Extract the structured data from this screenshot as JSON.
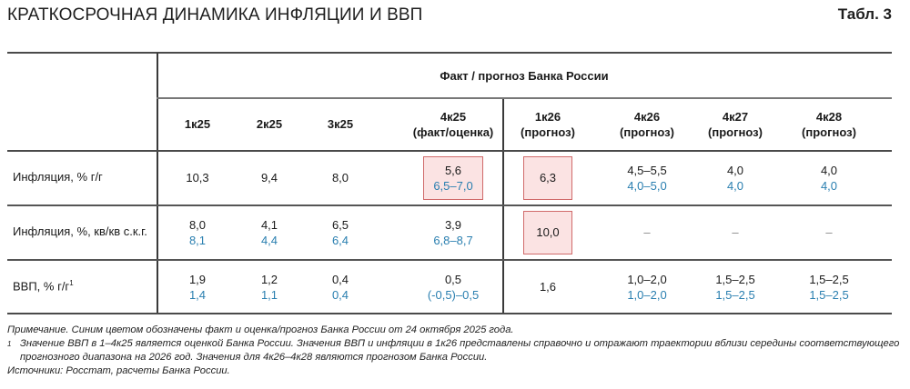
{
  "title": "КРАТКОСРОЧНАЯ ДИНАМИКА ИНФЛЯЦИИ И ВВП",
  "table_number": "Табл. 3",
  "group_header": "Факт / прогноз Банка России",
  "columns": [
    {
      "label": "1к25",
      "sub": ""
    },
    {
      "label": "2к25",
      "sub": ""
    },
    {
      "label": "3к25",
      "sub": ""
    },
    {
      "label": "4к25",
      "sub": "(факт/оценка)"
    },
    {
      "label": "1к26",
      "sub": "(прогноз)"
    },
    {
      "label": "4к26",
      "sub": "(прогноз)"
    },
    {
      "label": "4к27",
      "sub": "(прогноз)"
    },
    {
      "label": "4к28",
      "sub": "(прогноз)"
    }
  ],
  "rows": [
    {
      "label": "Инфляция, % г/г",
      "superscript": "",
      "cells": [
        {
          "main": "10,3",
          "blue": ""
        },
        {
          "main": "9,4",
          "blue": ""
        },
        {
          "main": "8,0",
          "blue": ""
        },
        {
          "main": "5,6",
          "blue": "6,5–7,0",
          "highlight": true
        },
        {
          "main": "6,3",
          "blue": "",
          "highlight": true
        },
        {
          "main": "4,5–5,5",
          "blue": "4,0–5,0"
        },
        {
          "main": "4,0",
          "blue": "4,0"
        },
        {
          "main": "4,0",
          "blue": "4,0"
        }
      ]
    },
    {
      "label": "Инфляция, %, кв/кв с.к.г.",
      "superscript": "",
      "cells": [
        {
          "main": "8,0",
          "blue": "8,1"
        },
        {
          "main": "4,1",
          "blue": "4,4"
        },
        {
          "main": "6,5",
          "blue": "6,4"
        },
        {
          "main": "3,9",
          "blue": "6,8–8,7"
        },
        {
          "main": "10,0",
          "blue": "",
          "highlight": true
        },
        {
          "main": "–",
          "blue": ""
        },
        {
          "main": "–",
          "blue": ""
        },
        {
          "main": "–",
          "blue": ""
        }
      ]
    },
    {
      "label": "ВВП, % г/г",
      "superscript": "1",
      "cells": [
        {
          "main": "1,9",
          "blue": "1,4"
        },
        {
          "main": "1,2",
          "blue": "1,1"
        },
        {
          "main": "0,4",
          "blue": "0,4"
        },
        {
          "main": "0,5",
          "blue": "(-0,5)–0,5"
        },
        {
          "main": "1,6",
          "blue": ""
        },
        {
          "main": "1,0–2,0",
          "blue": "1,0–2,0"
        },
        {
          "main": "1,5–2,5",
          "blue": "1,5–2,5"
        },
        {
          "main": "1,5–2,5",
          "blue": "1,5–2,5"
        }
      ]
    }
  ],
  "notes": {
    "note": "Примечание. Синим цветом обозначены факт и оценка/прогноз Банка России от 24 октября 2025 года.",
    "footnote_mark": "1",
    "footnote": "Значение ВВП в 1–4к25 является оценкой Банка России. Значения ВВП и инфляции в 1к26 представлены справочно и отражают траектории вблизи середины соответствующего прогнозного диапазона на 2026 год. Значения для 4к26–4к28 являются прогнозом Банка России.",
    "sources": "Источники: Росстат, расчеты Банка России."
  },
  "colors": {
    "blue_value": "#2a7fb0",
    "highlight_fill": "#fbe3e3",
    "highlight_border": "#d06a6a"
  }
}
